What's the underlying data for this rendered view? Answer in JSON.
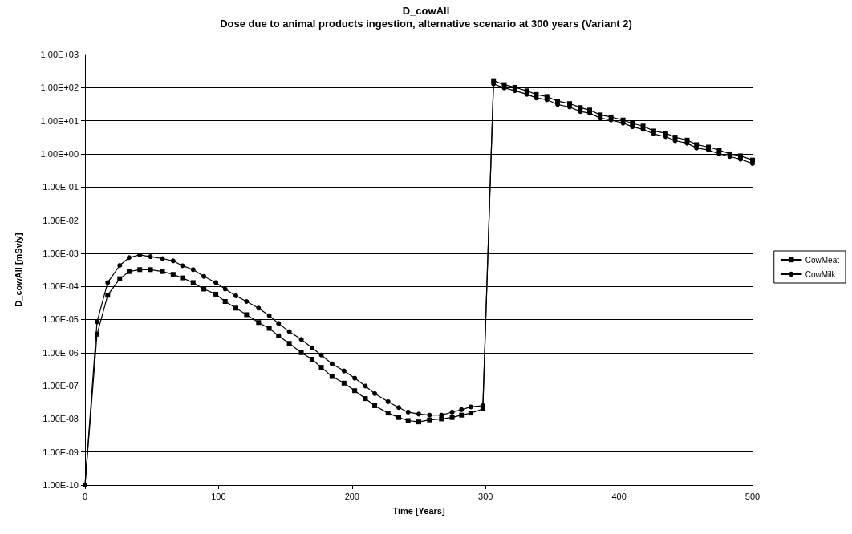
{
  "chart_data": {
    "type": "line",
    "title": "D_cowAll",
    "subtitle": "Dose due to animal products ingestion, alternative scenario at 300 years (Variant 2)",
    "xlabel": "Time [Years]",
    "ylabel": "D_cowAll [mSv/y]",
    "x": [
      0,
      9,
      17,
      26,
      33,
      41,
      49,
      58,
      66,
      73,
      81,
      89,
      98,
      105,
      113,
      121,
      130,
      138,
      145,
      153,
      162,
      170,
      177,
      185,
      194,
      202,
      210,
      217,
      227,
      235,
      242,
      250,
      258,
      267,
      275,
      282,
      289,
      298,
      306,
      314,
      322,
      331,
      338,
      346,
      354,
      363,
      371,
      378,
      386,
      394,
      403,
      410,
      418,
      426,
      435,
      442,
      451,
      458,
      467,
      475,
      483,
      491,
      500
    ],
    "series": [
      {
        "name": "CowMeat",
        "color": "#000000",
        "marker": "square",
        "values": [
          1e-10,
          3.6e-06,
          5.4e-05,
          0.00017,
          0.00028,
          0.00032,
          0.00032,
          0.00028,
          0.00023,
          0.00018,
          0.00013,
          8.3e-05,
          5.8e-05,
          3.5e-05,
          2.2e-05,
          1.4e-05,
          8.1e-06,
          5.4e-06,
          3.2e-06,
          1.9e-06,
          1e-06,
          6.3e-07,
          3.6e-07,
          1.9e-07,
          1.2e-07,
          7.1e-08,
          4.1e-08,
          2.5e-08,
          1.5e-08,
          1.1e-08,
          8.9e-09,
          8.1e-09,
          9.3e-09,
          1e-08,
          1.1e-08,
          1.3e-08,
          1.5e-08,
          2e-08,
          162,
          123,
          102,
          80,
          62,
          54,
          39,
          33,
          25,
          21,
          15,
          13,
          10.5,
          8.3,
          6.9,
          4.9,
          4.2,
          3.2,
          2.6,
          1.9,
          1.6,
          1.3,
          1.0,
          0.87,
          0.65
        ]
      },
      {
        "name": "CowMilk",
        "color": "#000000",
        "marker": "circle",
        "values": [
          1e-10,
          8.5e-06,
          0.00013,
          0.00043,
          0.00074,
          0.00089,
          0.00079,
          0.00069,
          0.00059,
          0.00042,
          0.00032,
          0.0002,
          0.00013,
          8.3e-05,
          5.2e-05,
          3.5e-05,
          2.2e-05,
          1.3e-05,
          7.6e-06,
          4.3e-06,
          2.5e-06,
          1.4e-06,
          8.5e-07,
          4.6e-07,
          2.8e-07,
          1.7e-07,
          9.8e-08,
          5.8e-08,
          3.3e-08,
          2.2e-08,
          1.6e-08,
          1.4e-08,
          1.3e-08,
          1.3e-08,
          1.6e-08,
          1.9e-08,
          2.3e-08,
          2.5e-08,
          129,
          98,
          81,
          63,
          49,
          43,
          31,
          26,
          19,
          17,
          12,
          10.5,
          8.5,
          6.6,
          5.5,
          4.0,
          3.3,
          2.5,
          2.1,
          1.5,
          1.3,
          1.0,
          0.83,
          0.69,
          0.51
        ]
      }
    ],
    "log": "y",
    "xlim": [
      0,
      500
    ],
    "xticks": [
      0,
      100,
      200,
      300,
      400,
      500
    ],
    "ylim": [
      1e-10,
      1000
    ],
    "yticks": [
      {
        "value": 1e-10,
        "label": "1.00E-10"
      },
      {
        "value": 1e-09,
        "label": "1.00E-09"
      },
      {
        "value": 1e-08,
        "label": "1.00E-08"
      },
      {
        "value": 1e-07,
        "label": "1.00E-07"
      },
      {
        "value": 1e-06,
        "label": "1.00E-06"
      },
      {
        "value": 1e-05,
        "label": "1.00E-05"
      },
      {
        "value": 0.0001,
        "label": "1.00E-04"
      },
      {
        "value": 0.001,
        "label": "1.00E-03"
      },
      {
        "value": 0.01,
        "label": "1.00E-02"
      },
      {
        "value": 0.1,
        "label": "1.00E-01"
      },
      {
        "value": 1,
        "label": "1.00E+00"
      },
      {
        "value": 10,
        "label": "1.00E+01"
      },
      {
        "value": 100,
        "label": "1.00E+02"
      },
      {
        "value": 1000,
        "label": "1.00E+03"
      }
    ],
    "grid": "y",
    "legend": "right",
    "line_style": "solid"
  }
}
